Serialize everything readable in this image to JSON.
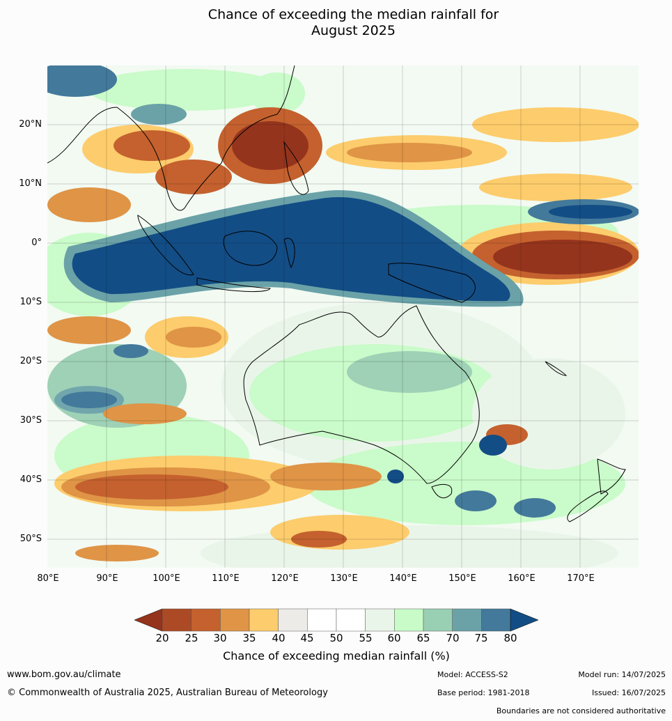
{
  "title_line1": "Chance of exceeding the median rainfall for",
  "title_line2": "August 2025",
  "lat_labels": [
    "20°N",
    "10°N",
    "0°",
    "10°S",
    "20°S",
    "30°S",
    "40°S",
    "50°S"
  ],
  "lon_labels": [
    "80°E",
    "90°E",
    "100°E",
    "110°E",
    "120°E",
    "130°E",
    "140°E",
    "150°E",
    "160°E",
    "170°E"
  ],
  "colorbar": {
    "label": "Chance of exceeding median rainfall (%)",
    "ticks": [
      "20",
      "25",
      "30",
      "35",
      "40",
      "45",
      "50",
      "55",
      "60",
      "65",
      "70",
      "75",
      "80"
    ],
    "colors": [
      "#ab4a25",
      "#c4612e",
      "#df9446",
      "#fdcc6c",
      "#edebe7",
      "#ffffff",
      "#ffffff",
      "#e9f5e9",
      "#c8fbc8",
      "#99cfb3",
      "#6aa2a8",
      "#43799a"
    ],
    "low_color": "#95341d",
    "high_color": "#134d85"
  },
  "footer": {
    "website": "www.bom.gov.au/climate",
    "copyright": "© Commonwealth of Australia 2025, Australian Bureau of Meteorology",
    "model": "Model: ACCESS-S2",
    "base_period": "Base period: 1981-2018",
    "model_run": "Model run: 14/07/2025",
    "issued": "Issued: 16/07/2025",
    "disclaimer": "Boundaries are not considered authoritative"
  }
}
